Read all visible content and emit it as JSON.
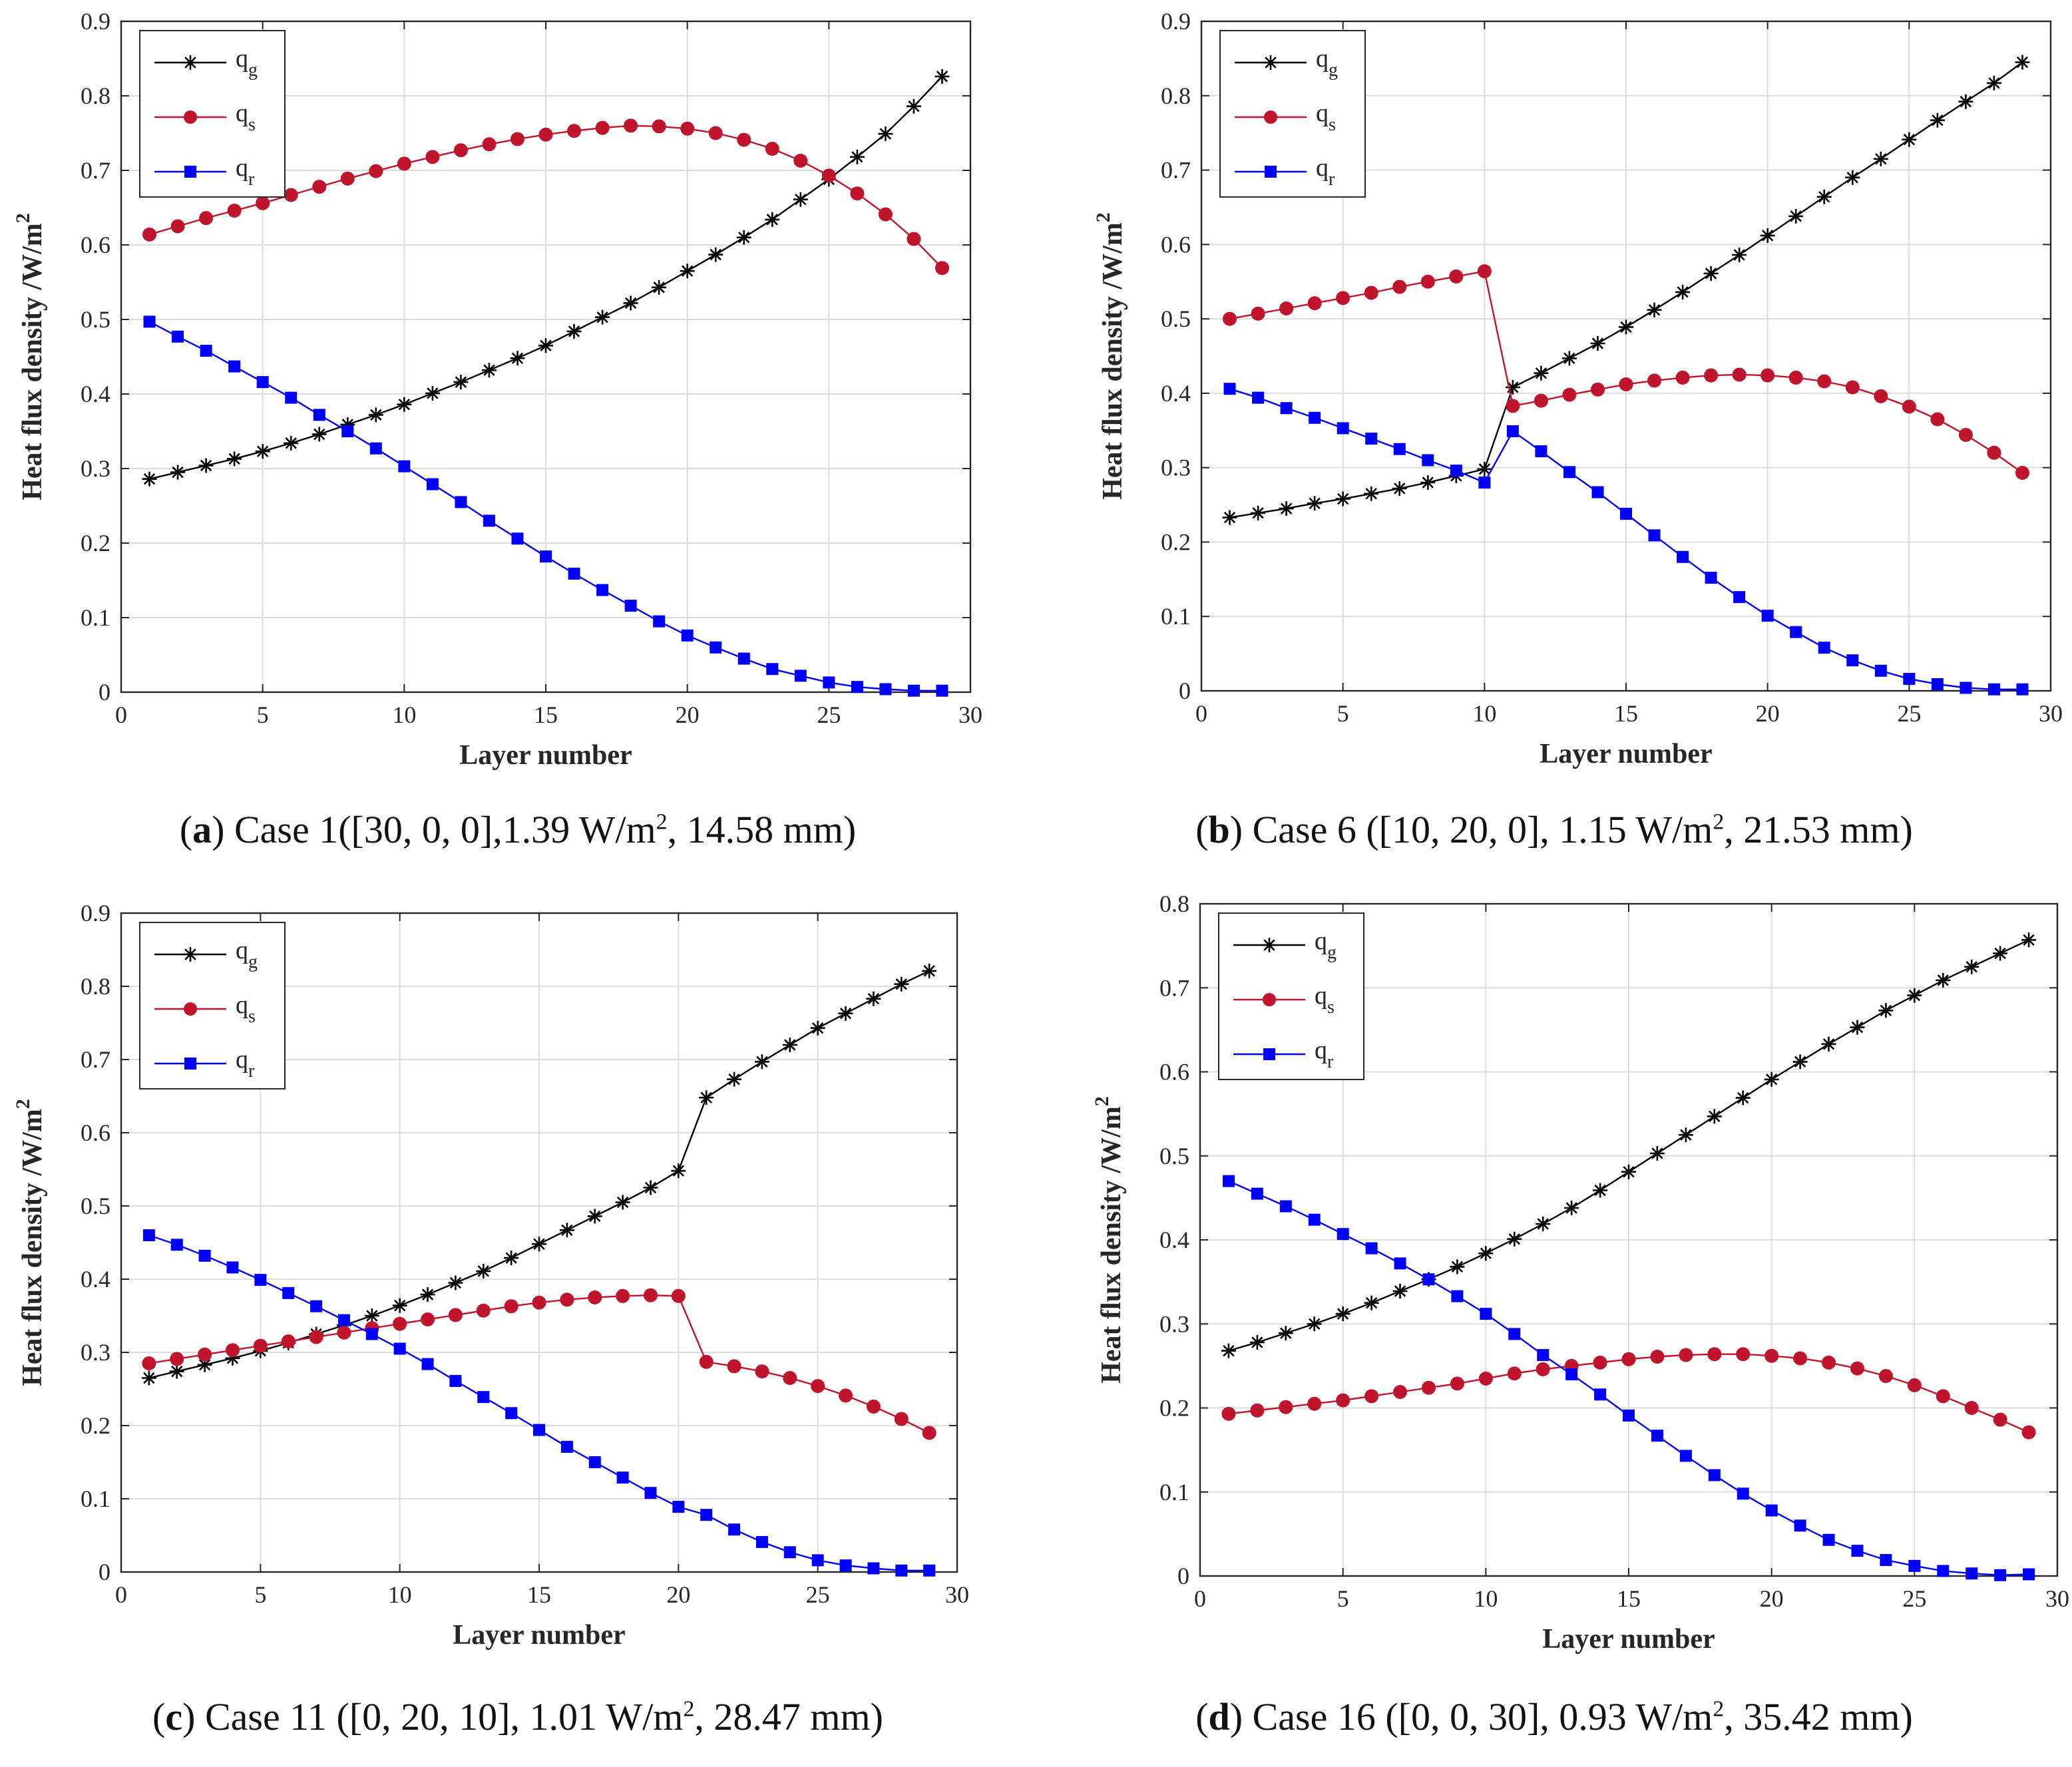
{
  "chart_data": [
    {
      "type": "line",
      "panel": "a",
      "caption": {
        "label": "a",
        "text": "Case 1([30, 0, 0],1.39 W/m",
        "sup": "2",
        "tail": ", 14.58 mm)"
      },
      "xlabel": "Layer number",
      "ylabel": "Heat flux density /W/m",
      "ylabel_sup": "2",
      "xlim": [
        0,
        30
      ],
      "ylim": [
        0,
        0.9
      ],
      "xticks": [
        "0",
        "5",
        "10",
        "15",
        "20",
        "25",
        "30"
      ],
      "yticks": [
        "0",
        "0.1",
        "0.2",
        "0.3",
        "0.4",
        "0.5",
        "0.6",
        "0.7",
        "0.8",
        "0.9"
      ],
      "grid": true,
      "legend": "top-left",
      "x": [
        1,
        2,
        3,
        4,
        5,
        6,
        7,
        8,
        9,
        10,
        11,
        12,
        13,
        14,
        15,
        16,
        17,
        18,
        19,
        20,
        21,
        22,
        23,
        24,
        25,
        26,
        27,
        28,
        29
      ],
      "series": [
        {
          "name": "q",
          "sub": "g",
          "color": "#000000",
          "marker": "star",
          "values": [
            0.286,
            0.295,
            0.304,
            0.313,
            0.323,
            0.334,
            0.346,
            0.359,
            0.372,
            0.386,
            0.401,
            0.416,
            0.432,
            0.448,
            0.465,
            0.484,
            0.503,
            0.522,
            0.543,
            0.565,
            0.587,
            0.61,
            0.634,
            0.661,
            0.688,
            0.718,
            0.749,
            0.786,
            0.826
          ]
        },
        {
          "name": "q",
          "sub": "s",
          "color": "#c0142c",
          "marker": "circle",
          "values": [
            0.614,
            0.625,
            0.636,
            0.646,
            0.656,
            0.667,
            0.678,
            0.689,
            0.699,
            0.709,
            0.718,
            0.727,
            0.735,
            0.742,
            0.748,
            0.753,
            0.757,
            0.76,
            0.759,
            0.756,
            0.75,
            0.741,
            0.729,
            0.713,
            0.693,
            0.669,
            0.641,
            0.608,
            0.569
          ]
        },
        {
          "name": "q",
          "sub": "r",
          "color": "#0000ff",
          "marker": "square",
          "values": [
            0.497,
            0.477,
            0.458,
            0.437,
            0.416,
            0.395,
            0.372,
            0.35,
            0.327,
            0.303,
            0.279,
            0.255,
            0.23,
            0.206,
            0.182,
            0.159,
            0.137,
            0.116,
            0.095,
            0.076,
            0.06,
            0.045,
            0.031,
            0.022,
            0.013,
            0.007,
            0.004,
            0.002,
            0.002
          ]
        }
      ]
    },
    {
      "type": "line",
      "panel": "b",
      "caption": {
        "label": "b",
        "text": "Case 6 ([10, 20, 0], 1.15 W/m",
        "sup": "2",
        "tail": ", 21.53 mm)"
      },
      "xlabel": "Layer number",
      "ylabel": "Heat flux density /W/m",
      "ylabel_sup": "2",
      "xlim": [
        0,
        30
      ],
      "ylim": [
        0,
        0.9
      ],
      "xticks": [
        "0",
        "5",
        "10",
        "15",
        "20",
        "25",
        "30"
      ],
      "yticks": [
        "0",
        "0.1",
        "0.2",
        "0.3",
        "0.4",
        "0.5",
        "0.6",
        "0.7",
        "0.8",
        "0.9"
      ],
      "grid": true,
      "legend": "top-left",
      "x": [
        1,
        2,
        3,
        4,
        5,
        6,
        7,
        8,
        9,
        10,
        11,
        12,
        13,
        14,
        15,
        16,
        17,
        18,
        19,
        20,
        21,
        22,
        23,
        24,
        25,
        26,
        27,
        28,
        29
      ],
      "series": [
        {
          "name": "q",
          "sub": "g",
          "color": "#000000",
          "marker": "star",
          "values": [
            0.233,
            0.239,
            0.245,
            0.252,
            0.258,
            0.265,
            0.272,
            0.28,
            0.289,
            0.298,
            0.408,
            0.427,
            0.447,
            0.467,
            0.489,
            0.512,
            0.536,
            0.561,
            0.586,
            0.612,
            0.638,
            0.664,
            0.69,
            0.715,
            0.741,
            0.767,
            0.792,
            0.817,
            0.845
          ]
        },
        {
          "name": "q",
          "sub": "s",
          "color": "#c0142c",
          "marker": "circle",
          "values": [
            0.5,
            0.507,
            0.514,
            0.521,
            0.528,
            0.535,
            0.543,
            0.55,
            0.557,
            0.564,
            0.383,
            0.39,
            0.398,
            0.405,
            0.412,
            0.417,
            0.421,
            0.424,
            0.425,
            0.424,
            0.421,
            0.416,
            0.408,
            0.396,
            0.382,
            0.365,
            0.344,
            0.32,
            0.293
          ]
        },
        {
          "name": "q",
          "sub": "r",
          "color": "#0000ff",
          "marker": "square",
          "values": [
            0.406,
            0.394,
            0.38,
            0.367,
            0.353,
            0.339,
            0.325,
            0.31,
            0.296,
            0.28,
            0.349,
            0.322,
            0.294,
            0.267,
            0.238,
            0.209,
            0.18,
            0.152,
            0.126,
            0.101,
            0.079,
            0.058,
            0.041,
            0.027,
            0.016,
            0.009,
            0.004,
            0.002,
            0.002
          ]
        }
      ]
    },
    {
      "type": "line",
      "panel": "c",
      "caption": {
        "label": "c",
        "text": "Case 11 ([0, 20, 10], 1.01 W/m",
        "sup": "2",
        "tail": ", 28.47 mm)"
      },
      "xlabel": "Layer number",
      "ylabel": "Heat flux density /W/m",
      "ylabel_sup": "2",
      "xlim": [
        0,
        30
      ],
      "ylim": [
        0,
        0.9
      ],
      "xticks": [
        "0",
        "5",
        "10",
        "15",
        "20",
        "25",
        "30"
      ],
      "yticks": [
        "0",
        "0.1",
        "0.2",
        "0.3",
        "0.4",
        "0.5",
        "0.6",
        "0.7",
        "0.8",
        "0.9"
      ],
      "grid": true,
      "legend": "top-left",
      "x": [
        1,
        2,
        3,
        4,
        5,
        6,
        7,
        8,
        9,
        10,
        11,
        12,
        13,
        14,
        15,
        16,
        17,
        18,
        19,
        20,
        21,
        22,
        23,
        24,
        25,
        26,
        27,
        28,
        29
      ],
      "series": [
        {
          "name": "q",
          "sub": "g",
          "color": "#000000",
          "marker": "star",
          "values": [
            0.265,
            0.274,
            0.283,
            0.292,
            0.302,
            0.313,
            0.325,
            0.337,
            0.35,
            0.364,
            0.379,
            0.395,
            0.411,
            0.429,
            0.448,
            0.467,
            0.486,
            0.505,
            0.525,
            0.548,
            0.648,
            0.673,
            0.697,
            0.72,
            0.743,
            0.763,
            0.783,
            0.803,
            0.821
          ]
        },
        {
          "name": "q",
          "sub": "s",
          "color": "#c0142c",
          "marker": "circle",
          "values": [
            0.285,
            0.291,
            0.297,
            0.303,
            0.309,
            0.315,
            0.321,
            0.327,
            0.333,
            0.339,
            0.345,
            0.351,
            0.357,
            0.363,
            0.368,
            0.372,
            0.375,
            0.377,
            0.378,
            0.377,
            0.287,
            0.281,
            0.274,
            0.265,
            0.254,
            0.241,
            0.226,
            0.209,
            0.19
          ]
        },
        {
          "name": "q",
          "sub": "r",
          "color": "#0000ff",
          "marker": "square",
          "values": [
            0.46,
            0.447,
            0.432,
            0.416,
            0.399,
            0.381,
            0.363,
            0.344,
            0.325,
            0.305,
            0.284,
            0.261,
            0.239,
            0.217,
            0.194,
            0.171,
            0.15,
            0.129,
            0.108,
            0.089,
            0.078,
            0.058,
            0.041,
            0.027,
            0.016,
            0.009,
            0.005,
            0.002,
            0.002
          ]
        }
      ]
    },
    {
      "type": "line",
      "panel": "d",
      "caption": {
        "label": "d",
        "text": "Case 16 ([0, 0, 30], 0.93 W/m",
        "sup": "2",
        "tail": ", 35.42 mm)"
      },
      "xlabel": "Layer number",
      "ylabel": "Heat flux density /W/m",
      "ylabel_sup": "2",
      "xlim": [
        0,
        30
      ],
      "ylim": [
        0,
        0.8
      ],
      "xticks": [
        "0",
        "5",
        "10",
        "15",
        "20",
        "25",
        "30"
      ],
      "yticks": [
        "0",
        "0.1",
        "0.2",
        "0.3",
        "0.4",
        "0.5",
        "0.6",
        "0.7",
        "0.8"
      ],
      "grid": true,
      "legend": "top-left",
      "x": [
        1,
        2,
        3,
        4,
        5,
        6,
        7,
        8,
        9,
        10,
        11,
        12,
        13,
        14,
        15,
        16,
        17,
        18,
        19,
        20,
        21,
        22,
        23,
        24,
        25,
        26,
        27,
        28,
        29
      ],
      "series": [
        {
          "name": "q",
          "sub": "g",
          "color": "#000000",
          "marker": "star",
          "values": [
            0.268,
            0.278,
            0.289,
            0.3,
            0.312,
            0.325,
            0.339,
            0.353,
            0.368,
            0.384,
            0.401,
            0.419,
            0.438,
            0.459,
            0.481,
            0.503,
            0.525,
            0.547,
            0.569,
            0.591,
            0.612,
            0.633,
            0.653,
            0.673,
            0.691,
            0.709,
            0.725,
            0.741,
            0.757
          ]
        },
        {
          "name": "q",
          "sub": "s",
          "color": "#c0142c",
          "marker": "circle",
          "values": [
            0.193,
            0.197,
            0.201,
            0.205,
            0.209,
            0.214,
            0.219,
            0.224,
            0.229,
            0.235,
            0.241,
            0.246,
            0.25,
            0.254,
            0.258,
            0.261,
            0.263,
            0.264,
            0.264,
            0.262,
            0.259,
            0.254,
            0.247,
            0.238,
            0.227,
            0.214,
            0.2,
            0.186,
            0.171
          ]
        },
        {
          "name": "q",
          "sub": "r",
          "color": "#0000ff",
          "marker": "square",
          "values": [
            0.47,
            0.455,
            0.44,
            0.424,
            0.407,
            0.39,
            0.372,
            0.353,
            0.333,
            0.312,
            0.288,
            0.263,
            0.24,
            0.216,
            0.191,
            0.167,
            0.143,
            0.12,
            0.098,
            0.078,
            0.06,
            0.043,
            0.03,
            0.019,
            0.012,
            0.006,
            0.003,
            0.001,
            0.002
          ]
        }
      ]
    }
  ]
}
